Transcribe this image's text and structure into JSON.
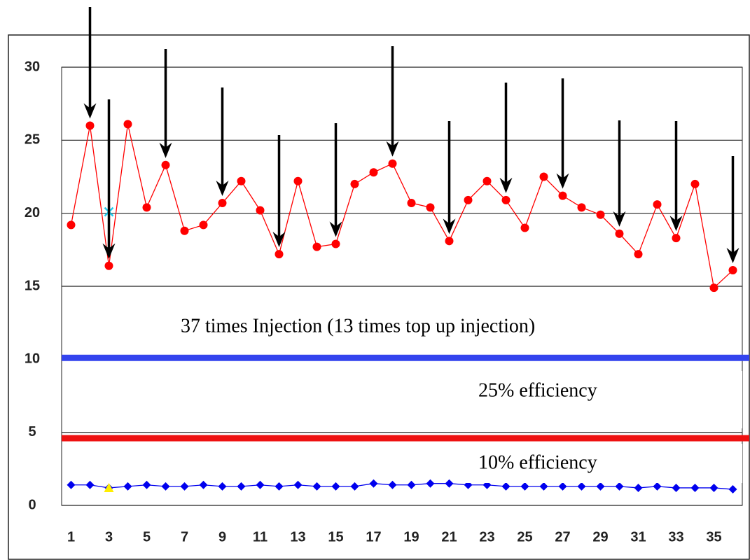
{
  "chart_data": {
    "type": "line",
    "categories": [
      1,
      null,
      3,
      null,
      5,
      null,
      7,
      null,
      9,
      null,
      11,
      null,
      13,
      null,
      15,
      null,
      17,
      null,
      19,
      null,
      21,
      null,
      23,
      null,
      25,
      null,
      27,
      null,
      29,
      null,
      31,
      null,
      33,
      null,
      35,
      null
    ],
    "series": [
      {
        "color": "#ff0000",
        "marker": "circle",
        "values": [
          19.2,
          26.0,
          16.4,
          26.1,
          20.4,
          23.3,
          18.8,
          19.2,
          20.7,
          22.2,
          20.2,
          17.2,
          22.2,
          17.7,
          17.9,
          22.0,
          22.8,
          23.4,
          20.7,
          20.4,
          18.1,
          20.9,
          22.2,
          20.9,
          19.0,
          22.5,
          21.2,
          20.4,
          19.9,
          18.6,
          17.2,
          20.6,
          18.3,
          22.0,
          14.9,
          16.1
        ]
      },
      {
        "color": "#0000ee",
        "marker": "diamond",
        "values": [
          1.4,
          1.4,
          1.2,
          1.3,
          1.4,
          1.3,
          1.3,
          1.4,
          1.3,
          1.3,
          1.4,
          1.3,
          1.4,
          1.3,
          1.3,
          1.3,
          1.5,
          1.4,
          1.4,
          1.5,
          1.5,
          1.4,
          1.4,
          1.3,
          1.3,
          1.3,
          1.3,
          1.3,
          1.3,
          1.3,
          1.2,
          1.3,
          1.2,
          1.2,
          1.2,
          1.1
        ]
      },
      {
        "color": "#22ccee",
        "marker": "cross",
        "line": false,
        "values": [
          null,
          null,
          20.1,
          null,
          null,
          null,
          null,
          null,
          null,
          null,
          null,
          null,
          null,
          null,
          null,
          null,
          null,
          null,
          null,
          null,
          null,
          null,
          null,
          null,
          null,
          null,
          null,
          null,
          null,
          null,
          null,
          null,
          null,
          null,
          null,
          null
        ]
      },
      {
        "color": "#ffee00",
        "marker": "triangle",
        "line": false,
        "values": [
          null,
          null,
          1.2,
          null,
          null,
          null,
          null,
          null,
          null,
          null,
          null,
          null,
          null,
          null,
          null,
          null,
          null,
          null,
          null,
          null,
          null,
          null,
          null,
          null,
          null,
          null,
          null,
          null,
          null,
          null,
          null,
          null,
          null,
          null,
          null,
          null
        ]
      }
    ],
    "reference_lines": [
      {
        "value": 10.1,
        "color": "#3344ee"
      },
      {
        "value": 4.6,
        "color": "#ee1111"
      }
    ],
    "ylim": [
      0,
      30
    ],
    "yticks": [
      0,
      5,
      10,
      15,
      20,
      25,
      30
    ],
    "grid": true,
    "annotations": [
      "37 times Injection (13 times top up injection)",
      "25% efficiency",
      "10% efficiency"
    ]
  }
}
